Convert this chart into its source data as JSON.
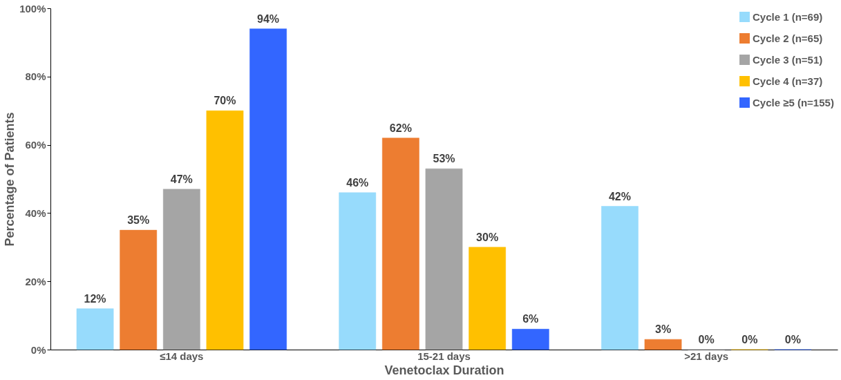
{
  "chart_data": {
    "type": "bar",
    "xlabel": "Venetoclax Duration",
    "ylabel": "Percentage of Patients",
    "categories": [
      "≤14 days",
      "15-21 days",
      ">21 days"
    ],
    "series": [
      {
        "name": "Cycle 1 (n=69)",
        "color": "#97dbfc",
        "values": [
          12,
          46,
          42
        ],
        "value_labels": [
          "12%",
          "46%",
          "42%"
        ]
      },
      {
        "name": "Cycle 2 (n=65)",
        "color": "#ed7d31",
        "values": [
          35,
          62,
          3
        ],
        "value_labels": [
          "35%",
          "62%",
          "3%"
        ]
      },
      {
        "name": "Cycle 3 (n=51)",
        "color": "#a5a5a5",
        "values": [
          47,
          53,
          0
        ],
        "value_labels": [
          "47%",
          "53%",
          "0%"
        ]
      },
      {
        "name": "Cycle 4 (n=37)",
        "color": "#ffc000",
        "values": [
          70,
          30,
          0
        ],
        "value_labels": [
          "70%",
          "30%",
          "0%"
        ]
      },
      {
        "name": "Cycle ≥5 (n=155)",
        "color": "#3366ff",
        "values": [
          94,
          6,
          0
        ],
        "value_labels": [
          "94%",
          "6%",
          "0%"
        ]
      }
    ],
    "ylim": [
      0,
      100
    ],
    "yticks": [
      {
        "value": 0,
        "label": "0%"
      },
      {
        "value": 20,
        "label": "20%"
      },
      {
        "value": 40,
        "label": "40%"
      },
      {
        "value": 60,
        "label": "60%"
      },
      {
        "value": 80,
        "label": "80%"
      },
      {
        "value": 100,
        "label": "100%"
      }
    ],
    "grid": false,
    "legend": "top right"
  }
}
